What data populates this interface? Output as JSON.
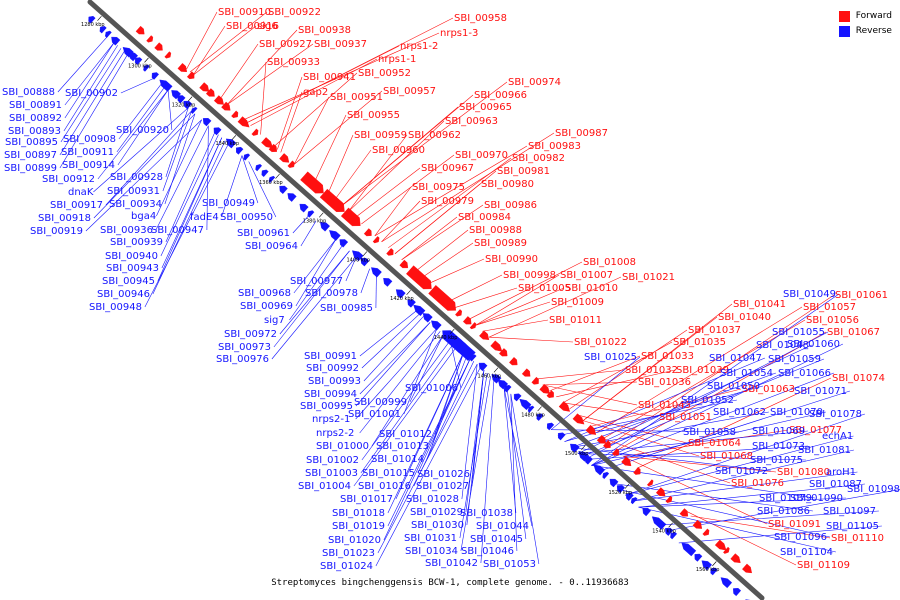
{
  "legend": {
    "forward_label": "Forward",
    "reverse_label": "Reverse"
  },
  "colors": {
    "forward": "#ff1010",
    "reverse": "#1414ff",
    "backbone": "#555555"
  },
  "caption": "Streptomyces bingchenggensis BCW-1, complete genome. - 0..11936683",
  "scale": {
    "ticks": [
      "1280 kbp",
      "1300 kbp",
      "1320 kbp",
      "1340 kbp",
      "1360 kbp",
      "1380 kbp",
      "1400 kbp",
      "1420 kbp",
      "1440 kbp",
      "1460 kbp",
      "1480 kbp",
      "1500 kbp",
      "1520 kbp",
      "1540 kbp",
      "1560 kbp"
    ],
    "start_kbp": 1275,
    "end_kbp": 1570
  },
  "forward_genes": [
    "SBI_00910",
    "SBI_00922",
    "SBI_00916",
    "sig6",
    "SBI_00938",
    "SBI_00958",
    "nrps1-3",
    "SBI_00927",
    "SBI_00937",
    "nrps1-2",
    "nrps1-1",
    "SBI_00933",
    "SBI_00952",
    "SBI_00941",
    "SBI_00957",
    "gap2",
    "SBI_00951",
    "SBI_00974",
    "SBI_00966",
    "SBI_00965",
    "SBI_00955",
    "SBI_00963",
    "SBI_00959",
    "SBI_00962",
    "SBI_00987",
    "SBI_00960",
    "SBI_00983",
    "SBI_00970",
    "SBI_00982",
    "SBI_00967",
    "SBI_00981",
    "SBI_00980",
    "SBI_00975",
    "SBI_00979",
    "SBI_00986",
    "SBI_00984",
    "SBI_00988",
    "SBI_00989",
    "SBI_00990",
    "SBI_01008",
    "SBI_00998",
    "SBI_01007",
    "SBI_01021",
    "SBI_01005",
    "SBI_01010",
    "SBI_01009",
    "SBI_01011",
    "SBI_01022",
    "SBI_01061",
    "SBI_01057",
    "SBI_01041",
    "SBI_01056",
    "SBI_01040",
    "SBI_01067",
    "SBI_01037",
    "SBI_01035",
    "SBI_01033",
    "SBI_01032",
    "SBI_01039",
    "SBI_01074",
    "SBI_01036",
    "SBI_01063",
    "SBI_01043",
    "SBI_01051",
    "SBI_01077",
    "SBI_01064",
    "SBI_01068",
    "SBI_01080",
    "SBI_01076",
    "SBI_01091",
    "SBI_01110",
    "SBI_01109"
  ],
  "reverse_genes": [
    "SBI_00888",
    "SBI_00891",
    "SBI_00892",
    "SBI_00893",
    "SBI_00895",
    "SBI_00897",
    "SBI_00899",
    "SBI_00902",
    "SBI_00920",
    "SBI_00908",
    "SBI_00911",
    "SBI_00914",
    "SBI_00912",
    "SBI_00928",
    "dnaK",
    "SBI_00931",
    "SBI_00917",
    "SBI_00934",
    "SBI_00918",
    "bga4",
    "SBI_00919",
    "SBI_00949",
    "fadE4",
    "SBI_00950",
    "SBI_00936",
    "SBI_00947",
    "SBI_00939",
    "SBI_00961",
    "SBI_00940",
    "SBI_00964",
    "SBI_00943",
    "SBI_00945",
    "SBI_00946",
    "SBI_00948",
    "SBI_00977",
    "SBI_00968",
    "SBI_00978",
    "SBI_00969",
    "SBI_00985",
    "sig7",
    "SBI_00972",
    "SBI_00973",
    "SBI_00976",
    "SBI_00991",
    "SBI_00992",
    "SBI_00993",
    "SBI_00994",
    "SBI_00999",
    "SBI_00995",
    "SBI_01006",
    "SBI_01001",
    "nrps2-1",
    "nrps2-2",
    "SBI_01012",
    "SBI_01000",
    "SBI_01013",
    "SBI_01002",
    "SBI_01014",
    "SBI_01003",
    "SBI_01015",
    "SBI_01026",
    "SBI_01004",
    "SBI_01016",
    "SBI_01027",
    "SBI_01017",
    "SBI_01028",
    "SBI_01018",
    "SBI_01029",
    "SBI_01038",
    "SBI_01019",
    "SBI_01030",
    "SBI_01044",
    "SBI_01020",
    "SBI_01031",
    "SBI_01045",
    "SBI_01023",
    "SBI_01034",
    "SBI_01046",
    "SBI_01024",
    "SBI_01042",
    "SBI_01053",
    "SBI_01049",
    "SBI_01048",
    "SBI_01055",
    "SBI_01060",
    "SBI_01025",
    "SBI_01047",
    "SBI_01059",
    "SBI_01054",
    "SBI_01066",
    "SBI_01050",
    "SBI_01071",
    "SBI_01052",
    "SBI_01062",
    "SBI_01070",
    "SBI_01078",
    "SBI_01058",
    "SBI_01069",
    "SBI_01073",
    "SBI_01081",
    "echA1",
    "SBI_01075",
    "SBI_01072",
    "aroH1",
    "SBI_01087",
    "SBI_01098",
    "SBI_01079",
    "SBI_01090",
    "SBI_01086",
    "SBI_01097",
    "SBI_01105",
    "SBI_01096",
    "SBI_01104"
  ]
}
